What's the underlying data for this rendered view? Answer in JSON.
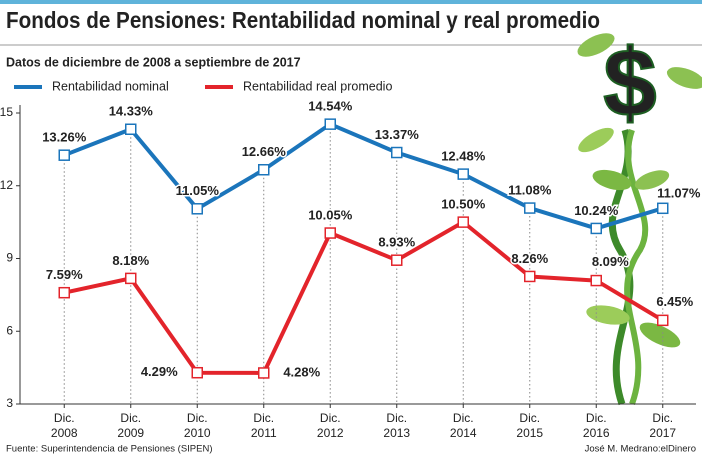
{
  "chart_data": {
    "type": "line",
    "title": "Fondos de Pensiones: Rentabilidad nominal y real promedio",
    "subtitle": "Datos de diciembre de 2008 a septiembre de 2017",
    "source": "Fuente: Superintendencia de Pensiones (SIPEN)",
    "credit": "José M. Medrano:elDinero",
    "categories": [
      [
        "Dic.",
        "2008"
      ],
      [
        "Dic.",
        "2009"
      ],
      [
        "Dic.",
        "2010"
      ],
      [
        "Dic.",
        "2011"
      ],
      [
        "Dic.",
        "2012"
      ],
      [
        "Dic.",
        "2013"
      ],
      [
        "Dic.",
        "2014"
      ],
      [
        "Dic.",
        "2015"
      ],
      [
        "Dic.",
        "2016"
      ],
      [
        "Dic.",
        "2017"
      ]
    ],
    "series": [
      {
        "name": "Rentabilidad nominal",
        "color": "#1b75bb",
        "values": [
          13.26,
          14.33,
          11.05,
          12.66,
          14.54,
          13.37,
          12.48,
          11.08,
          10.24,
          11.07
        ],
        "value_labels": [
          "13.26%",
          "14.33%",
          "11.05%",
          "12.66%",
          "14.54%",
          "13.37%",
          "12.48%",
          "11.08%",
          "10.24%",
          "11.07%"
        ]
      },
      {
        "name": "Rentabilidad real promedio",
        "color": "#e3242b",
        "values": [
          7.59,
          8.18,
          4.29,
          4.28,
          10.05,
          8.93,
          10.5,
          8.26,
          8.09,
          6.45
        ],
        "value_labels": [
          "7.59%",
          "8.18%",
          "4.29%",
          "4.28%",
          "10.05%",
          "8.93%",
          "10.50%",
          "8.26%",
          "8.09%",
          "6.45%"
        ]
      }
    ],
    "ylim": [
      3,
      15
    ],
    "yticks": [
      3,
      6,
      9,
      12,
      15
    ]
  }
}
